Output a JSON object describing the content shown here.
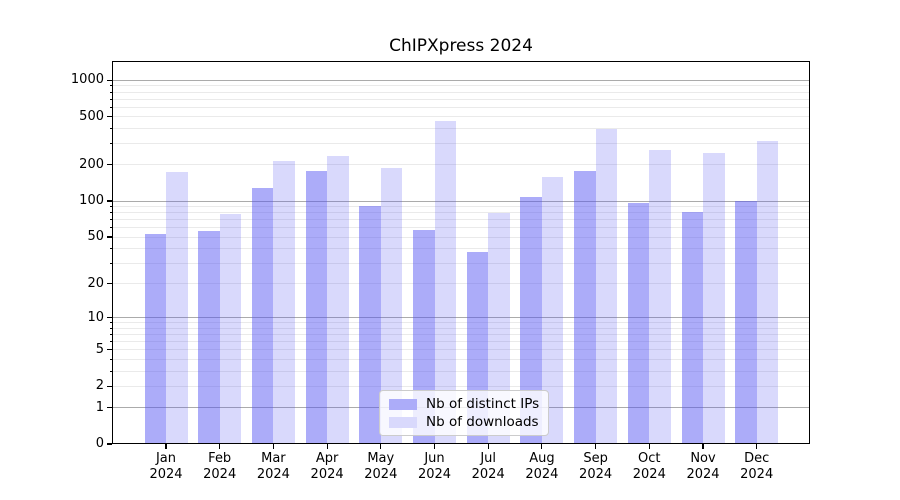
{
  "chart_data": {
    "type": "bar",
    "title": "ChIPXpress 2024",
    "categories": [
      "Jan",
      "Feb",
      "Mar",
      "Apr",
      "May",
      "Jun",
      "Jul",
      "Aug",
      "Sep",
      "Oct",
      "Nov",
      "Dec"
    ],
    "year_label": "2024",
    "series": [
      {
        "name": "Nb of distinct IPs",
        "values": [
          52,
          55,
          125,
          176,
          90,
          56,
          37,
          107,
          176,
          95,
          80,
          98
        ],
        "color": "rgba(82,82,242,0.48)",
        "swatch_color": "#acacf9"
      },
      {
        "name": "Nb of downloads",
        "values": [
          172,
          77,
          213,
          234,
          186,
          455,
          78,
          157,
          385,
          262,
          245,
          310
        ],
        "color": "rgba(82,82,242,0.22)",
        "swatch_color": "#d9d9fc"
      }
    ],
    "yscale": "log1p",
    "ylim": [
      0,
      1415
    ],
    "yticks": [
      0,
      1,
      2,
      5,
      10,
      20,
      50,
      100,
      200,
      500,
      1000
    ],
    "grid": {
      "major_ticks": [
        1,
        10,
        100,
        1000
      ],
      "minor_mantissas": [
        2,
        3,
        4,
        5,
        6,
        7,
        8,
        9
      ],
      "major_color": "#ababab",
      "minor_color": "#eaeaea"
    },
    "legend": {
      "position": "inside-lower-center"
    },
    "xlabel": "",
    "ylabel": ""
  }
}
